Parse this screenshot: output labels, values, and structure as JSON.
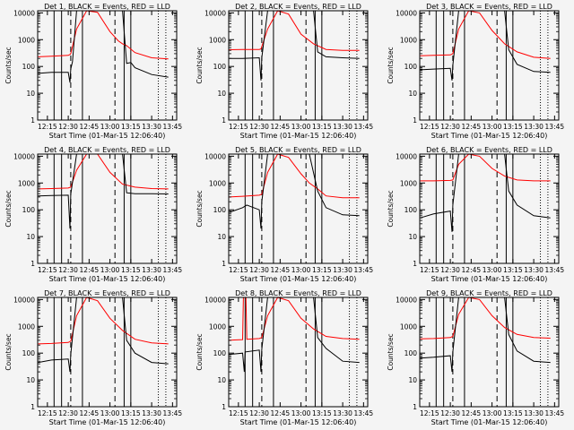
{
  "colors": {
    "background": "#f4f4f4",
    "black_series": "#000000",
    "red_series": "#ff0000",
    "axis": "#000000"
  },
  "chart_data": [
    {
      "type": "line",
      "title": "Det 1, BLACK = Events, RED = LLD",
      "ylabel": "Counts/sec",
      "xlabel": "Start Time (01-Mar-15 12:06:40)",
      "yscale": "log",
      "ylim": [
        1,
        12000
      ],
      "xlim": [
        12.1333,
        13.8
      ],
      "xtick_values": [
        12.25,
        12.5,
        12.75,
        13.0,
        13.25,
        13.5,
        13.75
      ],
      "xtick_labels": [
        "12:15",
        "12:30",
        "12:45",
        "13:00",
        "13:15",
        "13:30",
        "13:45"
      ],
      "ytick_values": [
        1,
        10,
        100,
        1000,
        10000
      ],
      "ytick_labels": [
        "1",
        "10",
        "100",
        "1000",
        "10000"
      ],
      "vlines_solid": [
        12.33,
        12.42,
        12.67,
        13.17,
        13.25
      ],
      "vlines_dashed": [
        12.53,
        13.06
      ],
      "vlines_dotted": [
        13.58,
        13.67
      ],
      "series": [
        {
          "color": "red",
          "x": [
            12.14,
            12.3,
            12.5,
            12.52,
            12.53,
            12.6,
            12.72,
            12.85,
            13.0,
            13.1,
            13.15,
            13.2,
            13.3,
            13.5,
            13.7
          ],
          "y": [
            230,
            240,
            260,
            280,
            300,
            2500,
            12000,
            10500,
            2000,
            900,
            700,
            600,
            330,
            210,
            190
          ]
        },
        {
          "color": "black",
          "x": [
            12.14,
            12.3,
            12.5,
            12.52,
            12.53,
            12.55,
            12.6,
            12.7,
            12.8,
            13.0,
            13.15,
            13.2,
            13.25,
            13.3,
            13.5,
            13.7
          ],
          "y": [
            55,
            60,
            60,
            25,
            80,
            150,
            12000,
            12000,
            12000,
            12000,
            12000,
            130,
            140,
            90,
            50,
            40
          ]
        }
      ]
    },
    {
      "type": "line",
      "title": "Det 2, BLACK = Events, RED = LLD",
      "ylabel": "Counts/sec",
      "xlabel": "Start Time (01-Mar-15 12:06:40)",
      "yscale": "log",
      "ylim": [
        1,
        12000
      ],
      "xlim": [
        12.1333,
        13.8
      ],
      "xtick_values": [
        12.25,
        12.5,
        12.75,
        13.0,
        13.25,
        13.5,
        13.75
      ],
      "xtick_labels": [
        "12:15",
        "12:30",
        "12:45",
        "13:00",
        "13:15",
        "13:30",
        "13:45"
      ],
      "ytick_values": [
        1,
        10,
        100,
        1000,
        10000
      ],
      "ytick_labels": [
        "1",
        "10",
        "100",
        "1000",
        "10000"
      ],
      "vlines_solid": [
        12.33,
        12.42,
        12.67,
        13.17,
        13.25
      ],
      "vlines_dashed": [
        12.53,
        13.06
      ],
      "vlines_dotted": [
        13.58,
        13.67
      ],
      "series": [
        {
          "color": "red",
          "x": [
            12.14,
            12.3,
            12.5,
            12.52,
            12.6,
            12.72,
            12.85,
            13.0,
            13.15,
            13.3,
            13.5,
            13.7
          ],
          "y": [
            420,
            430,
            430,
            450,
            2500,
            12000,
            9000,
            1600,
            700,
            430,
            400,
            400
          ]
        },
        {
          "color": "black",
          "x": [
            12.14,
            12.3,
            12.5,
            12.52,
            12.53,
            12.6,
            12.8,
            13.0,
            13.15,
            13.2,
            13.3,
            13.5,
            13.7
          ],
          "y": [
            200,
            200,
            210,
            30,
            210,
            12000,
            12000,
            12000,
            12000,
            350,
            230,
            210,
            200
          ]
        }
      ]
    },
    {
      "type": "line",
      "title": "Det 3, BLACK = Events, RED = LLD",
      "ylabel": "Counts/sec",
      "xlabel": "Start Time (01-Mar-15 12:06:40)",
      "yscale": "log",
      "ylim": [
        1,
        12000
      ],
      "xlim": [
        12.1333,
        13.8
      ],
      "xtick_values": [
        12.25,
        12.5,
        12.75,
        13.0,
        13.25,
        13.5,
        13.75
      ],
      "xtick_labels": [
        "12:15",
        "12:30",
        "12:45",
        "13:00",
        "13:15",
        "13:30",
        "13:45"
      ],
      "ytick_values": [
        1,
        10,
        100,
        1000,
        10000
      ],
      "ytick_labels": [
        "1",
        "10",
        "100",
        "1000",
        "10000"
      ],
      "vlines_solid": [
        12.33,
        12.42,
        12.67,
        13.17,
        13.25
      ],
      "vlines_dashed": [
        12.53,
        13.06
      ],
      "vlines_dotted": [
        13.58,
        13.67
      ],
      "series": [
        {
          "color": "red",
          "x": [
            12.14,
            12.3,
            12.5,
            12.53,
            12.6,
            12.72,
            12.85,
            13.0,
            13.15,
            13.3,
            13.5,
            13.7
          ],
          "y": [
            250,
            260,
            270,
            300,
            2500,
            12000,
            10000,
            2200,
            700,
            350,
            220,
            200
          ]
        },
        {
          "color": "black",
          "x": [
            12.14,
            12.3,
            12.5,
            12.52,
            12.53,
            12.6,
            12.8,
            13.0,
            13.15,
            13.2,
            13.3,
            13.5,
            13.7
          ],
          "y": [
            75,
            80,
            85,
            30,
            110,
            12000,
            12000,
            12000,
            12000,
            420,
            120,
            65,
            60
          ]
        }
      ]
    },
    {
      "type": "line",
      "title": "Det 4, BLACK = Events, RED = LLD",
      "ylabel": "Counts/sec",
      "xlabel": "Start Time (01-Mar-15 12:06:40)",
      "yscale": "log",
      "ylim": [
        1,
        12000
      ],
      "xlim": [
        12.1333,
        13.8
      ],
      "xtick_values": [
        12.25,
        12.5,
        12.75,
        13.0,
        13.25,
        13.5,
        13.75
      ],
      "xtick_labels": [
        "12:15",
        "12:30",
        "12:45",
        "13:00",
        "13:15",
        "13:30",
        "13:45"
      ],
      "ytick_values": [
        1,
        10,
        100,
        1000,
        10000
      ],
      "ytick_labels": [
        "1",
        "10",
        "100",
        "1000",
        "10000"
      ],
      "vlines_solid": [
        12.33,
        12.42,
        12.67,
        13.17,
        13.25
      ],
      "vlines_dashed": [
        12.53,
        13.06
      ],
      "vlines_dotted": [
        13.58,
        13.67
      ],
      "series": [
        {
          "color": "red",
          "x": [
            12.14,
            12.3,
            12.5,
            12.53,
            12.6,
            12.72,
            12.85,
            13.0,
            13.15,
            13.3,
            13.5,
            13.7
          ],
          "y": [
            600,
            620,
            650,
            700,
            3000,
            12000,
            12000,
            2500,
            900,
            700,
            620,
            600
          ]
        },
        {
          "color": "black",
          "x": [
            12.14,
            12.3,
            12.5,
            12.52,
            12.53,
            12.6,
            12.8,
            13.0,
            13.15,
            13.2,
            13.3,
            13.5,
            13.7
          ],
          "y": [
            330,
            340,
            350,
            20,
            380,
            12000,
            12000,
            12000,
            12000,
            430,
            400,
            400,
            390
          ]
        }
      ]
    },
    {
      "type": "line",
      "title": "Det 5, BLACK = Events, RED = LLD",
      "ylabel": "Counts/sec",
      "xlabel": "Start Time (01-Mar-15 12:06:40)",
      "yscale": "log",
      "ylim": [
        1,
        12000
      ],
      "xlim": [
        12.1333,
        13.8
      ],
      "xtick_values": [
        12.25,
        12.5,
        12.75,
        13.0,
        13.25,
        13.5,
        13.75
      ],
      "xtick_labels": [
        "12:15",
        "12:30",
        "12:45",
        "13:00",
        "13:15",
        "13:30",
        "13:45"
      ],
      "ytick_values": [
        1,
        10,
        100,
        1000,
        10000
      ],
      "ytick_labels": [
        "1",
        "10",
        "100",
        "1000",
        "10000"
      ],
      "vlines_solid": [
        12.33,
        12.42,
        12.67,
        13.17,
        13.25
      ],
      "vlines_dashed": [
        12.53,
        13.06
      ],
      "vlines_dotted": [
        13.58,
        13.67
      ],
      "series": [
        {
          "color": "red",
          "x": [
            12.14,
            12.3,
            12.5,
            12.53,
            12.6,
            12.72,
            12.85,
            13.0,
            13.1,
            13.2,
            13.3,
            13.5,
            13.7
          ],
          "y": [
            300,
            320,
            350,
            380,
            2500,
            12000,
            9000,
            2200,
            1000,
            600,
            330,
            280,
            280
          ]
        },
        {
          "color": "black",
          "x": [
            12.14,
            12.3,
            12.35,
            12.5,
            12.52,
            12.53,
            12.6,
            12.8,
            13.0,
            13.1,
            13.2,
            13.3,
            13.5,
            13.7
          ],
          "y": [
            80,
            120,
            150,
            100,
            20,
            200,
            12000,
            12000,
            12000,
            12000,
            500,
            120,
            65,
            60
          ]
        }
      ]
    },
    {
      "type": "line",
      "title": "Det 6, BLACK = Events, RED = LLD",
      "ylabel": "Counts/sec",
      "xlabel": "Start Time (01-Mar-15 12:06:40)",
      "yscale": "log",
      "ylim": [
        1,
        12000
      ],
      "xlim": [
        12.1333,
        13.8
      ],
      "xtick_values": [
        12.25,
        12.5,
        12.75,
        13.0,
        13.25,
        13.5,
        13.75
      ],
      "xtick_labels": [
        "12:15",
        "12:30",
        "12:45",
        "13:00",
        "13:15",
        "13:30",
        "13:45"
      ],
      "ytick_values": [
        1,
        10,
        100,
        1000,
        10000
      ],
      "ytick_labels": [
        "1",
        "10",
        "100",
        "1000",
        "10000"
      ],
      "vlines_solid": [
        12.33,
        12.42,
        12.67,
        13.17,
        13.25
      ],
      "vlines_dashed": [
        12.53,
        13.06
      ],
      "vlines_dotted": [
        13.58,
        13.67
      ],
      "series": [
        {
          "color": "red",
          "x": [
            12.14,
            12.3,
            12.5,
            12.53,
            12.6,
            12.72,
            12.85,
            13.0,
            13.15,
            13.3,
            13.5,
            13.7
          ],
          "y": [
            1200,
            1200,
            1250,
            1300,
            5000,
            12000,
            10000,
            3500,
            1800,
            1300,
            1200,
            1200
          ]
        },
        {
          "color": "black",
          "x": [
            12.14,
            12.3,
            12.5,
            12.52,
            12.53,
            12.6,
            12.8,
            13.0,
            13.15,
            13.2,
            13.3,
            13.5,
            13.7
          ],
          "y": [
            50,
            70,
            90,
            15,
            150,
            12000,
            12000,
            12000,
            12000,
            500,
            150,
            60,
            50
          ]
        }
      ]
    },
    {
      "type": "line",
      "title": "Det 7, BLACK = Events, RED = LLD",
      "ylabel": "Counts/sec",
      "xlabel": "Start Time (01-Mar-15 12:06:40)",
      "yscale": "log",
      "ylim": [
        1,
        12000
      ],
      "xlim": [
        12.1333,
        13.8
      ],
      "xtick_values": [
        12.25,
        12.5,
        12.75,
        13.0,
        13.25,
        13.5,
        13.75
      ],
      "xtick_labels": [
        "12:15",
        "12:30",
        "12:45",
        "13:00",
        "13:15",
        "13:30",
        "13:45"
      ],
      "ytick_values": [
        1,
        10,
        100,
        1000,
        10000
      ],
      "ytick_labels": [
        "1",
        "10",
        "100",
        "1000",
        "10000"
      ],
      "vlines_solid": [
        12.33,
        12.42,
        12.67,
        13.17,
        13.25
      ],
      "vlines_dashed": [
        12.53,
        13.06
      ],
      "vlines_dotted": [
        13.58,
        13.67
      ],
      "series": [
        {
          "color": "red",
          "x": [
            12.14,
            12.3,
            12.5,
            12.53,
            12.6,
            12.72,
            12.85,
            13.0,
            13.15,
            13.3,
            13.5,
            13.7
          ],
          "y": [
            220,
            230,
            250,
            280,
            2500,
            12000,
            9000,
            2000,
            700,
            330,
            240,
            220
          ]
        },
        {
          "color": "black",
          "x": [
            12.14,
            12.3,
            12.5,
            12.52,
            12.53,
            12.6,
            12.8,
            13.0,
            13.15,
            13.2,
            13.3,
            13.5,
            13.7
          ],
          "y": [
            45,
            55,
            60,
            20,
            90,
            12000,
            12000,
            12000,
            12000,
            300,
            100,
            45,
            40
          ]
        }
      ]
    },
    {
      "type": "line",
      "title": "Det 8, BLACK = Events, RED = LLD",
      "ylabel": "Counts/sec",
      "xlabel": "Start Time (01-Mar-15 12:06:40)",
      "yscale": "log",
      "ylim": [
        1,
        12000
      ],
      "xlim": [
        12.1333,
        13.8
      ],
      "xtick_values": [
        12.25,
        12.5,
        12.75,
        13.0,
        13.25,
        13.5,
        13.75
      ],
      "xtick_labels": [
        "12:15",
        "12:30",
        "12:45",
        "13:00",
        "13:15",
        "13:30",
        "13:45"
      ],
      "ytick_values": [
        1,
        10,
        100,
        1000,
        10000
      ],
      "ytick_labels": [
        "1",
        "10",
        "100",
        "1000",
        "10000"
      ],
      "vlines_solid": [
        12.33,
        12.42,
        12.67,
        13.17,
        13.25
      ],
      "vlines_dashed": [
        12.53,
        13.06
      ],
      "vlines_dotted": [
        13.58,
        13.67
      ],
      "series": [
        {
          "color": "red",
          "x": [
            12.14,
            12.2,
            12.3,
            12.31,
            12.34,
            12.35,
            12.5,
            12.53,
            12.6,
            12.72,
            12.85,
            13.0,
            13.15,
            13.3,
            13.5,
            13.7
          ],
          "y": [
            300,
            310,
            320,
            12000,
            12000,
            330,
            350,
            380,
            2500,
            12000,
            9000,
            2000,
            800,
            420,
            350,
            330
          ]
        },
        {
          "color": "black",
          "x": [
            12.14,
            12.3,
            12.32,
            12.33,
            12.5,
            12.52,
            12.53,
            12.6,
            12.8,
            13.0,
            13.15,
            13.2,
            13.3,
            13.5,
            13.7
          ],
          "y": [
            90,
            100,
            20,
            110,
            130,
            20,
            140,
            12000,
            12000,
            12000,
            12000,
            380,
            150,
            50,
            45
          ]
        }
      ]
    },
    {
      "type": "line",
      "title": "Det 9, BLACK = Events, RED = LLD",
      "ylabel": "Counts/sec",
      "xlabel": "Start Time (01-Mar-15 12:06:40)",
      "yscale": "log",
      "ylim": [
        1,
        12000
      ],
      "xlim": [
        12.1333,
        13.8
      ],
      "xtick_values": [
        12.25,
        12.5,
        12.75,
        13.0,
        13.25,
        13.5,
        13.75
      ],
      "xtick_labels": [
        "12:15",
        "12:30",
        "12:45",
        "13:00",
        "13:15",
        "13:30",
        "13:45"
      ],
      "ytick_values": [
        1,
        10,
        100,
        1000,
        10000
      ],
      "ytick_labels": [
        "1",
        "10",
        "100",
        "1000",
        "10000"
      ],
      "vlines_solid": [
        12.33,
        12.42,
        12.67,
        13.17,
        13.25
      ],
      "vlines_dashed": [
        12.53,
        13.06
      ],
      "vlines_dotted": [
        13.58,
        13.67
      ],
      "series": [
        {
          "color": "red",
          "x": [
            12.14,
            12.3,
            12.5,
            12.53,
            12.6,
            12.72,
            12.85,
            13.0,
            13.15,
            13.3,
            13.5,
            13.7
          ],
          "y": [
            340,
            350,
            380,
            420,
            2800,
            12000,
            10000,
            2500,
            900,
            500,
            380,
            360
          ]
        },
        {
          "color": "black",
          "x": [
            12.14,
            12.3,
            12.5,
            12.52,
            12.53,
            12.6,
            12.8,
            13.0,
            13.15,
            13.2,
            13.3,
            13.5,
            13.7
          ],
          "y": [
            65,
            70,
            80,
            20,
            110,
            12000,
            12000,
            12000,
            12000,
            500,
            120,
            50,
            45
          ]
        }
      ]
    }
  ]
}
